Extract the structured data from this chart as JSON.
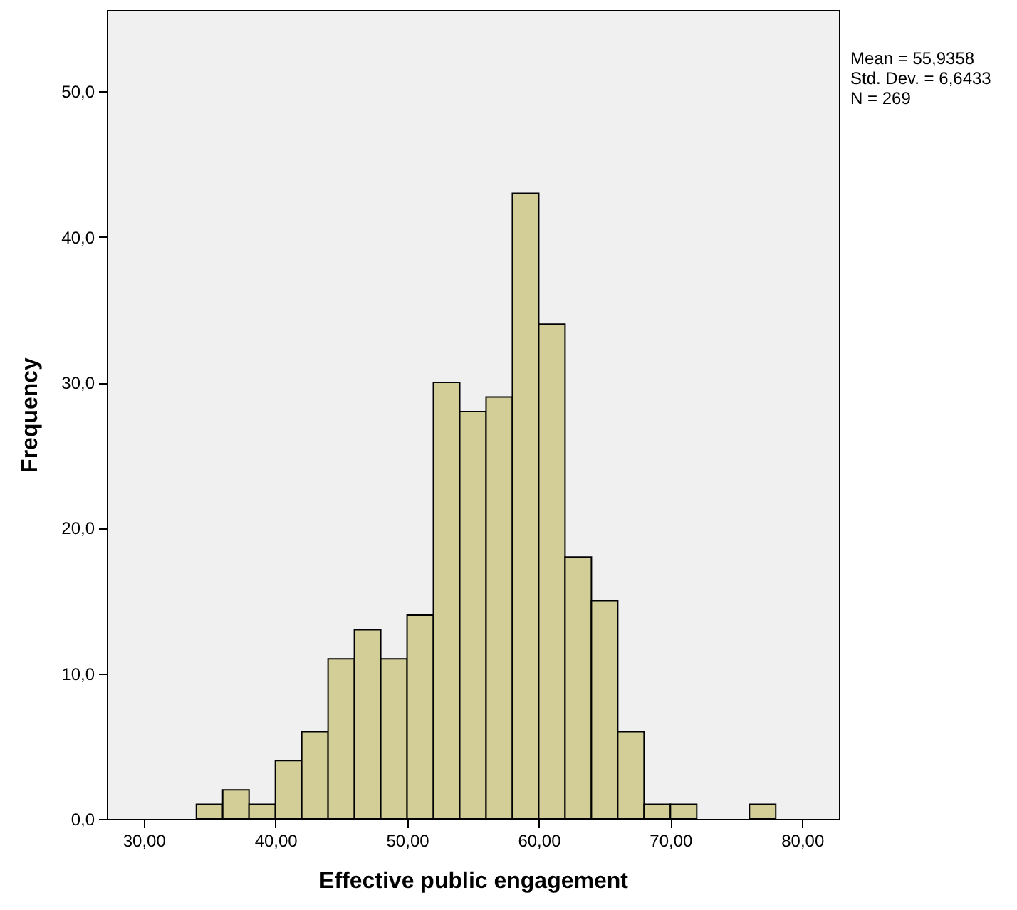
{
  "chart_data": {
    "type": "histogram",
    "xlabel": "Effective public engagement",
    "ylabel": "Frequency",
    "bins": [
      34,
      36,
      38,
      40,
      42,
      44,
      46,
      48,
      50,
      52,
      54,
      56,
      58,
      60,
      62,
      64,
      66,
      68,
      70,
      72,
      74,
      76,
      78
    ],
    "values": [
      1,
      2,
      1,
      4,
      6,
      11,
      13,
      11,
      14,
      30,
      28,
      29,
      43,
      34,
      18,
      15,
      6,
      1,
      1,
      0,
      0,
      1
    ],
    "color": "#d3ce97",
    "xlim": [
      27.2,
      82.8
    ],
    "xticks": [
      {
        "value": 30,
        "label": "30,00"
      },
      {
        "value": 40,
        "label": "40,00"
      },
      {
        "value": 50,
        "label": "50,00"
      },
      {
        "value": 60,
        "label": "60,00"
      },
      {
        "value": 70,
        "label": "70,00"
      },
      {
        "value": 80,
        "label": "80,00"
      }
    ],
    "ylim": [
      0,
      55.6
    ],
    "yticks": [
      {
        "value": 0,
        "label": "0,0"
      },
      {
        "value": 10,
        "label": "10,0"
      },
      {
        "value": 20,
        "label": "20,0"
      },
      {
        "value": 30,
        "label": "30,0"
      },
      {
        "value": 40,
        "label": "40,0"
      },
      {
        "value": 50,
        "label": "50,0"
      }
    ],
    "annotations": [
      "Mean = 55,9358",
      "Std. Dev. = 6,6433",
      "N = 269"
    ]
  }
}
